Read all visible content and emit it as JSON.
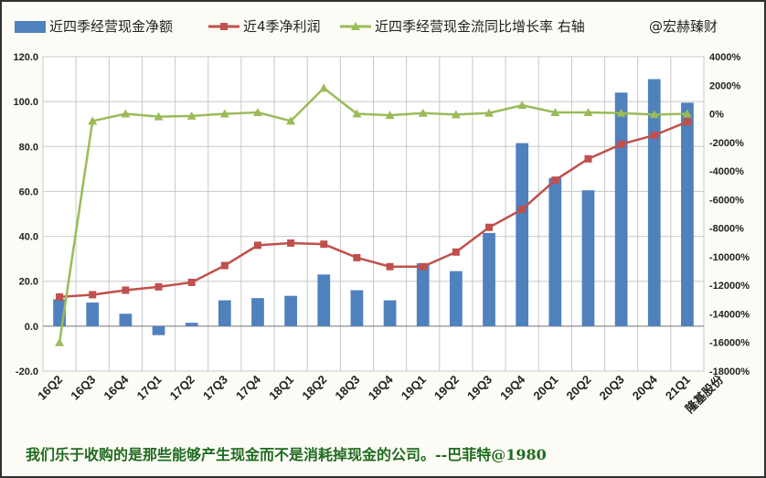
{
  "chart_data": {
    "type": "bar+line",
    "legend_position": "top",
    "grid": true,
    "categories": [
      "16Q2",
      "16Q3",
      "16Q4",
      "17Q1",
      "17Q2",
      "17Q3",
      "17Q4",
      "18Q1",
      "18Q2",
      "18Q3",
      "18Q4",
      "19Q1",
      "19Q2",
      "19Q3",
      "19Q4",
      "20Q1",
      "20Q2",
      "20Q3",
      "20Q4",
      "21Q1"
    ],
    "y_left": {
      "min": -20,
      "max": 120,
      "step": 20,
      "tick_labels": [
        "-20.0",
        "0.0",
        "20.0",
        "40.0",
        "60.0",
        "80.0",
        "100.0",
        "120.0"
      ]
    },
    "y_right": {
      "min": -18000,
      "max": 4000,
      "step": 2000,
      "tick_labels": [
        "-18000%",
        "-16000%",
        "-14000%",
        "-12000%",
        "-10000%",
        "-8000%",
        "-6000%",
        "-4000%",
        "-2000%",
        "0%",
        "2000%",
        "4000%"
      ]
    },
    "series": [
      {
        "name": "近四季经营现金净额",
        "kind": "bar",
        "axis": "left",
        "color": "#4f81bd",
        "values": [
          12,
          10.5,
          5.5,
          -4,
          1.5,
          11.5,
          12.5,
          13.5,
          23,
          16,
          11.5,
          28,
          24.5,
          41.5,
          81.5,
          66,
          60.5,
          104,
          110,
          99.5
        ]
      },
      {
        "name": "近4季净利润",
        "kind": "line",
        "axis": "left",
        "color": "#c0504d",
        "marker": "square",
        "values": [
          13,
          14,
          16,
          17.5,
          19.5,
          27,
          36,
          37,
          36.5,
          30.5,
          26.5,
          26.5,
          33,
          44,
          52,
          65,
          74.5,
          81,
          85,
          91
        ]
      },
      {
        "name": "近四季经营现金流同比增长率 右轴",
        "kind": "line",
        "axis": "right",
        "color": "#9bbb59",
        "marker": "triangle",
        "values": [
          -16000,
          -500,
          0,
          -200,
          -150,
          0,
          100,
          -500,
          1800,
          0,
          -100,
          50,
          -50,
          50,
          600,
          100,
          100,
          50,
          -50,
          0
        ]
      }
    ],
    "watermark": "@宏赫臻财",
    "source_label": "隆基股份"
  },
  "footer": {
    "quote": "我们乐于收购的是那些能够产生现金而不是消耗掉现金的公司。--巴菲特@1980"
  }
}
